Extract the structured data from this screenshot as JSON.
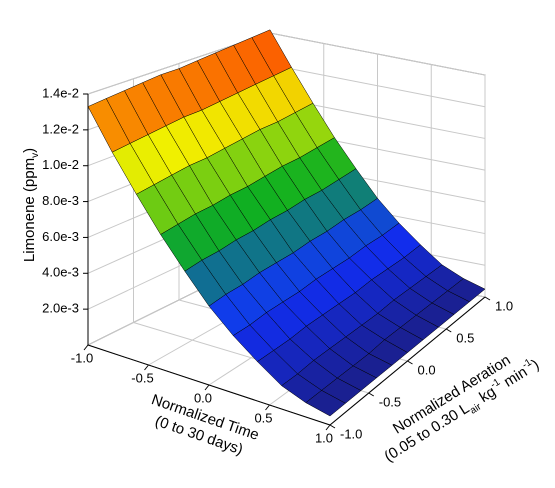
{
  "chart_data": {
    "type": "surface3d",
    "zlabel": [
      {
        "text": "Limonene (ppm"
      },
      {
        "text": "v",
        "shift": "sub"
      },
      {
        "text": ")"
      }
    ],
    "xlabel": [
      [
        {
          "text": "Normalized Time"
        }
      ],
      [
        {
          "text": "(0 to 30 days)"
        }
      ]
    ],
    "ylabel": [
      [
        {
          "text": "Normalized Aeration"
        }
      ],
      [
        {
          "text": "(0.05 to 0.30 L"
        },
        {
          "text": "air",
          "shift": "sub"
        },
        {
          "text": " kg"
        },
        {
          "text": "-1",
          "shift": "sup"
        },
        {
          "text": " min"
        },
        {
          "text": "-1",
          "shift": "sup"
        },
        {
          "text": ")"
        }
      ]
    ],
    "x": [
      -1,
      -0.8,
      -0.6,
      -0.4,
      -0.2,
      0,
      0.2,
      0.4,
      0.6,
      0.8,
      1
    ],
    "y": [
      -1,
      -0.8,
      -0.6,
      -0.4,
      -0.2,
      0,
      0.2,
      0.4,
      0.6,
      0.8,
      1
    ],
    "z": [
      [
        0.0133,
        0.0134,
        0.0135,
        0.0136,
        0.0137,
        0.0137,
        0.0138,
        0.0139,
        0.014,
        0.0141,
        0.0142
      ],
      [
        0.0112,
        0.0113,
        0.0114,
        0.0115,
        0.0116,
        0.0116,
        0.0117,
        0.0118,
        0.0119,
        0.012,
        0.0121
      ],
      [
        0.0093,
        0.0094,
        0.0095,
        0.0096,
        0.0096,
        0.0097,
        0.0098,
        0.0099,
        0.0099,
        0.01,
        0.0101
      ],
      [
        0.0075,
        0.0076,
        0.0077,
        0.0077,
        0.0078,
        0.0078,
        0.0079,
        0.008,
        0.008,
        0.0081,
        0.0082
      ],
      [
        0.0059,
        0.006,
        0.006,
        0.0061,
        0.0061,
        0.0062,
        0.0062,
        0.0063,
        0.0063,
        0.0064,
        0.0065
      ],
      [
        0.0044,
        0.0045,
        0.0045,
        0.0046,
        0.0046,
        0.0046,
        0.0047,
        0.0047,
        0.0048,
        0.0048,
        0.0049
      ],
      [
        0.0032,
        0.0032,
        0.0033,
        0.0033,
        0.0033,
        0.0034,
        0.0034,
        0.0034,
        0.0035,
        0.0035,
        0.0036
      ],
      [
        0.0022,
        0.0022,
        0.0022,
        0.0023,
        0.0023,
        0.0023,
        0.0023,
        0.0024,
        0.0024,
        0.0024,
        0.0025
      ],
      [
        0.0013,
        0.0013,
        0.0014,
        0.0014,
        0.0014,
        0.0014,
        0.0014,
        0.0015,
        0.0015,
        0.0015,
        0.0015
      ],
      [
        0.0008,
        0.0008,
        0.0008,
        0.0008,
        0.0008,
        0.0009,
        0.0009,
        0.0009,
        0.0009,
        0.0009,
        0.0009
      ],
      [
        0.0005,
        0.0005,
        0.0005,
        0.0005,
        0.0005,
        0.0005,
        0.0005,
        0.0005,
        0.0005,
        0.0005,
        0.0005
      ]
    ],
    "xlim": [
      -1,
      1
    ],
    "ylim": [
      -1,
      1
    ],
    "zlim": [
      0,
      0.014
    ],
    "xticks": [
      {
        "value": -1,
        "label": "-1.0"
      },
      {
        "value": -0.5,
        "label": "-0.5"
      },
      {
        "value": 0,
        "label": "0.0"
      },
      {
        "value": 0.5,
        "label": "0.5"
      },
      {
        "value": 1,
        "label": "1.0"
      }
    ],
    "yticks": [
      {
        "value": -1,
        "label": "-1.0"
      },
      {
        "value": -0.5,
        "label": "-0.5"
      },
      {
        "value": 0,
        "label": "0.0"
      },
      {
        "value": 0.5,
        "label": "0.5"
      },
      {
        "value": 1,
        "label": "1.0"
      }
    ],
    "zticks": [
      {
        "value": 0.002,
        "label": "2.0e-3"
      },
      {
        "value": 0.004,
        "label": "4.0e-3"
      },
      {
        "value": 0.006,
        "label": "6.0e-3"
      },
      {
        "value": 0.008,
        "label": "8.0e-3"
      },
      {
        "value": 0.01,
        "label": "1.0e-2"
      },
      {
        "value": 0.012,
        "label": "1.2e-2"
      },
      {
        "value": 0.014,
        "label": "1.4e-2"
      }
    ],
    "grid": true,
    "colormap": [
      "#1c1c78",
      "#1030ff",
      "#10b020",
      "#f0f000",
      "#ff3000"
    ]
  }
}
